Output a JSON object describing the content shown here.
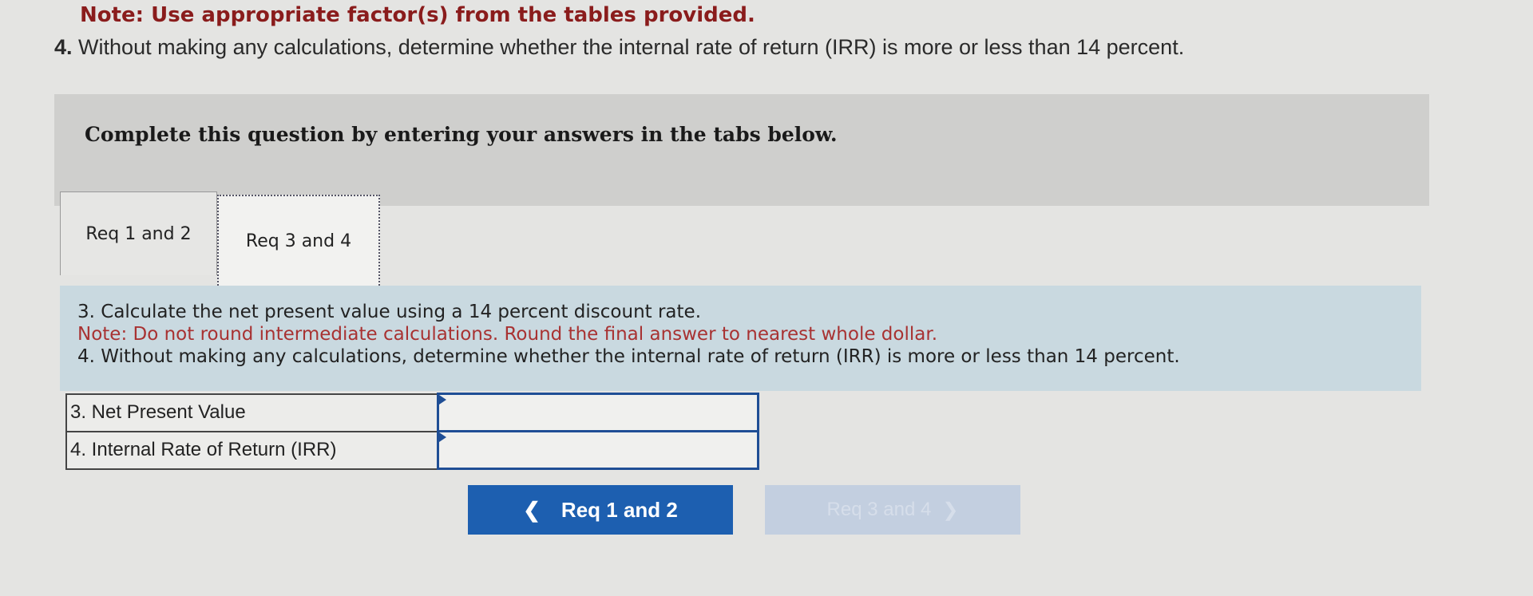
{
  "header": {
    "note": "Note: Use appropriate factor(s) from the tables provided.",
    "question_number": "4.",
    "question_text": "Without making any calculations, determine whether the internal rate of return (IRR) is more or less than 14 percent."
  },
  "banner": {
    "text": "Complete this question by entering your answers in the tabs below."
  },
  "tabs": [
    {
      "label": "Req 1 and 2",
      "active": false
    },
    {
      "label": "Req 3 and 4",
      "active": true
    }
  ],
  "instructions": {
    "line1": "3. Calculate the net present value using a 14 percent discount rate.",
    "note": "Note: Do not round intermediate calculations. Round the final answer to nearest whole dollar.",
    "line2": "4. Without making any calculations, determine whether the internal rate of return (IRR) is more or less than 14 percent."
  },
  "answers": [
    {
      "label": "3. Net Present Value",
      "value": ""
    },
    {
      "label": "4. Internal Rate of Return (IRR)",
      "value": ""
    }
  ],
  "nav": {
    "prev_label": "Req 1 and 2",
    "prev_icon": "chevron-left",
    "next_label": "Req 3 and 4",
    "next_icon": "chevron-right",
    "next_disabled": true
  },
  "colors": {
    "primary": "#1d5fb0",
    "note": "#8a1c1c",
    "panel": "#c9d9e0"
  }
}
